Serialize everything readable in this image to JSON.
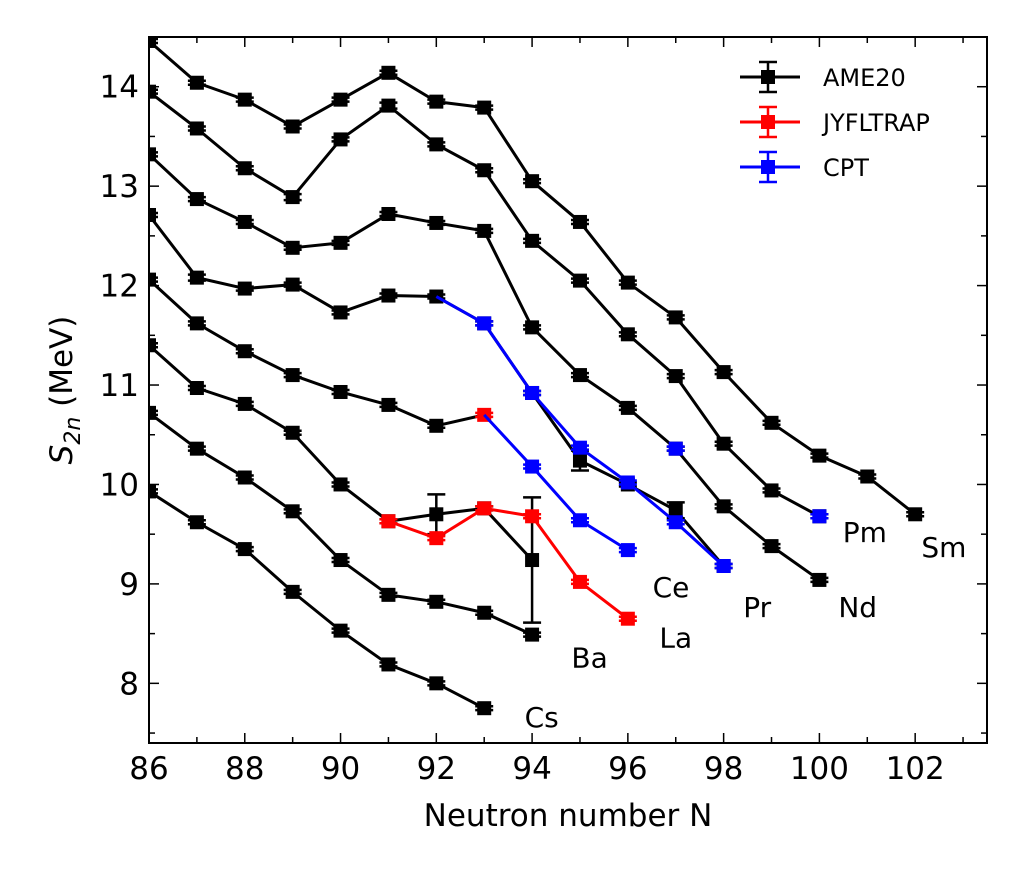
{
  "chart_data": {
    "type": "line",
    "title": "",
    "xlabel": "Neutron number N",
    "ylabel_main": "S",
    "ylabel_sub": "2n",
    "ylabel_unit": " (MeV)",
    "xlim": [
      86,
      103.5
    ],
    "ylim": [
      7.4,
      14.5
    ],
    "xticks": [
      86,
      88,
      90,
      92,
      94,
      96,
      98,
      100,
      102
    ],
    "xtick_labels": [
      "86",
      "88",
      "90",
      "92",
      "94",
      "96",
      "98",
      "100",
      "102"
    ],
    "yticks": [
      8,
      9,
      10,
      11,
      12,
      13,
      14
    ],
    "ytick_labels": [
      "8",
      "9",
      "10",
      "11",
      "12",
      "13",
      "14"
    ],
    "grid": false,
    "legend_position": "top-right",
    "legend": [
      {
        "name": "AME20",
        "color": "#000000"
      },
      {
        "name": "JYFLTRAP",
        "color": "#ff0000"
      },
      {
        "name": "CPT",
        "color": "#0000ff"
      }
    ],
    "series": [
      {
        "element": "Sm",
        "dataset": "AME20",
        "color": "#000000",
        "x": [
          86,
          87,
          88,
          89,
          90,
          91,
          92,
          93,
          94,
          95,
          96,
          97,
          98,
          99,
          100,
          101,
          102
        ],
        "y": [
          14.46,
          14.04,
          13.87,
          13.6,
          13.87,
          14.14,
          13.85,
          13.79,
          13.05,
          12.64,
          12.03,
          11.68,
          11.13,
          10.62,
          10.29,
          10.08,
          9.7
        ],
        "err": [
          0.02,
          0.02,
          0.02,
          0.02,
          0.02,
          0.02,
          0.02,
          0.02,
          0.02,
          0.02,
          0.02,
          0.02,
          0.02,
          0.02,
          0.02,
          0.02,
          0.02
        ]
      },
      {
        "element": "Pm",
        "dataset": "AME20",
        "color": "#000000",
        "x": [
          86,
          87,
          88,
          89,
          90,
          91,
          92,
          93,
          94,
          95,
          96,
          97,
          98,
          99,
          100
        ],
        "y": [
          13.95,
          13.58,
          13.18,
          12.89,
          13.47,
          13.81,
          13.42,
          13.16,
          12.45,
          12.05,
          11.51,
          11.09,
          10.41,
          9.94,
          9.68
        ],
        "err": [
          0.02,
          0.02,
          0.02,
          0.03,
          0.02,
          0.03,
          0.02,
          0.02,
          0.02,
          0.02,
          0.02,
          0.02,
          0.02,
          0.02,
          0.02
        ]
      },
      {
        "element": "Pm",
        "dataset": "CPT",
        "color": "#0000ff",
        "x": [
          100
        ],
        "y": [
          9.68
        ],
        "err": [
          0.02
        ]
      },
      {
        "element": "Nd",
        "dataset": "AME20",
        "color": "#000000",
        "x": [
          86,
          87,
          88,
          89,
          90,
          91,
          92,
          93,
          94,
          95,
          96,
          97,
          98,
          99,
          100
        ],
        "y": [
          13.32,
          12.87,
          12.64,
          12.38,
          12.43,
          12.72,
          12.63,
          12.55,
          11.58,
          11.1,
          10.77,
          10.36,
          9.78,
          9.38,
          9.04
        ],
        "err": [
          0.02,
          0.02,
          0.02,
          0.02,
          0.02,
          0.02,
          0.02,
          0.02,
          0.02,
          0.02,
          0.02,
          0.02,
          0.02,
          0.02,
          0.02
        ]
      },
      {
        "element": "Nd",
        "dataset": "CPT",
        "color": "#0000ff",
        "x": [
          97
        ],
        "y": [
          10.36
        ],
        "err": [
          0.02
        ]
      },
      {
        "element": "Pr",
        "dataset": "AME20",
        "color": "#000000",
        "x": [
          86,
          87,
          88,
          89,
          90,
          91,
          92,
          93,
          94,
          95,
          96,
          97,
          98
        ],
        "y": [
          12.71,
          12.08,
          11.97,
          12.01,
          11.73,
          11.9,
          11.89,
          11.62,
          10.92,
          10.24,
          10.0,
          9.74,
          9.18
        ],
        "err": [
          0.02,
          0.03,
          0.02,
          0.02,
          0.02,
          0.02,
          0.02,
          0.02,
          0.02,
          0.1,
          0.02,
          0.08,
          0.02
        ]
      },
      {
        "element": "Pr",
        "dataset": "CPT",
        "color": "#0000ff",
        "x": [
          92,
          93,
          94,
          95,
          96,
          97,
          98
        ],
        "y": [
          11.89,
          11.62,
          10.92,
          10.37,
          10.02,
          9.62,
          9.18
        ],
        "err": [
          0,
          0.02,
          0.02,
          0.02,
          0.02,
          0.02,
          0.02
        ],
        "markers": [
          false,
          true,
          true,
          true,
          true,
          true,
          true
        ]
      },
      {
        "element": "Ce",
        "dataset": "AME20",
        "color": "#000000",
        "x": [
          86,
          87,
          88,
          89,
          90,
          91,
          92
        ],
        "y": [
          12.06,
          11.62,
          11.34,
          11.1,
          10.93,
          10.8,
          10.59
        ],
        "err": [
          0.02,
          0.02,
          0.02,
          0.02,
          0.02,
          0.02,
          0.02
        ]
      },
      {
        "element": "Ce",
        "dataset": "JYFLTRAP",
        "color": "#ff0000",
        "x": [
          92,
          93
        ],
        "y": [
          10.59,
          10.7
        ],
        "err": [
          0,
          0.02
        ],
        "markers": [
          false,
          true
        ],
        "line_color": "#000000"
      },
      {
        "element": "Ce",
        "dataset": "CPT",
        "color": "#0000ff",
        "x": [
          93,
          94,
          95,
          96
        ],
        "y": [
          10.7,
          10.18,
          9.64,
          9.34
        ],
        "err": [
          0,
          0.02,
          0.02,
          0.02
        ],
        "markers": [
          false,
          true,
          true,
          true
        ]
      },
      {
        "element": "La",
        "dataset": "AME20",
        "color": "#000000",
        "x": [
          86,
          87,
          88,
          89,
          90,
          91,
          92,
          93,
          94
        ],
        "y": [
          11.4,
          10.97,
          10.81,
          10.52,
          10.0,
          9.63,
          9.7,
          9.76,
          9.24
        ],
        "err": [
          0.02,
          0.02,
          0.02,
          0.02,
          0.02,
          0.02,
          0.2,
          0.02,
          0.63
        ]
      },
      {
        "element": "La",
        "dataset": "JYFLTRAP",
        "color": "#ff0000",
        "x": [
          91,
          92,
          93,
          94,
          95,
          96
        ],
        "y": [
          9.63,
          9.46,
          9.76,
          9.68,
          9.02,
          8.65
        ],
        "err": [
          0.02,
          0.02,
          0.02,
          0.02,
          0.02,
          0.02
        ]
      },
      {
        "element": "Ba",
        "dataset": "AME20",
        "color": "#000000",
        "x": [
          86,
          87,
          88,
          89,
          90,
          91,
          92,
          93,
          94
        ],
        "y": [
          10.72,
          10.36,
          10.07,
          9.73,
          9.24,
          8.89,
          8.82,
          8.71,
          8.49
        ],
        "err": [
          0.02,
          0.02,
          0.02,
          0.02,
          0.02,
          0.02,
          0.02,
          0.02,
          0.02
        ]
      },
      {
        "element": "Cs",
        "dataset": "AME20",
        "color": "#000000",
        "x": [
          86,
          87,
          88,
          89,
          90,
          91,
          92,
          93
        ],
        "y": [
          9.93,
          9.62,
          9.35,
          8.92,
          8.53,
          8.19,
          8.0,
          7.75
        ],
        "err": [
          0.02,
          0.02,
          0.02,
          0.02,
          0.02,
          0.02,
          0.02,
          0.02
        ]
      }
    ],
    "annotations": [
      {
        "text": "Sm",
        "x": 102.6,
        "y": 9.37
      },
      {
        "text": "Pm",
        "x": 100.95,
        "y": 9.52
      },
      {
        "text": "Nd",
        "x": 100.8,
        "y": 8.77
      },
      {
        "text": "Pr",
        "x": 98.7,
        "y": 8.77
      },
      {
        "text": "Ce",
        "x": 96.9,
        "y": 8.97
      },
      {
        "text": "La",
        "x": 97.0,
        "y": 8.46
      },
      {
        "text": "Ba",
        "x": 95.2,
        "y": 8.26
      },
      {
        "text": "Cs",
        "x": 94.2,
        "y": 7.66
      }
    ]
  }
}
